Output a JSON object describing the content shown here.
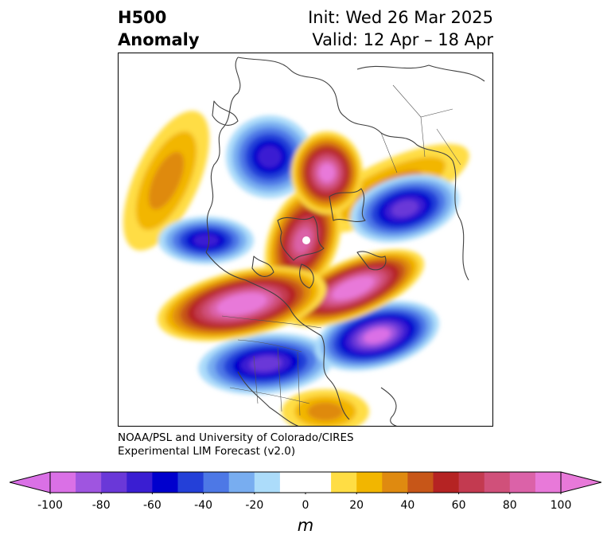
{
  "title": {
    "left_line1": "H500",
    "left_line2": "Anomaly",
    "right_line1": "Init: Wed 26 Mar 2025",
    "right_line2": "Valid: 12 Apr – 18 Apr"
  },
  "credit": {
    "line1": "NOAA/PSL and University of Colorado/CIRES",
    "line2": "Experimental LIM Forecast (v2.0)"
  },
  "colorbar": {
    "unit": "m",
    "ticks": [
      "-100",
      "-80",
      "-60",
      "-40",
      "-20",
      "0",
      "20",
      "40",
      "60",
      "80",
      "100"
    ],
    "low_extend_color": "#da70e6",
    "high_extend_color": "#e879d9",
    "colors": [
      "#da70e6",
      "#9f55e0",
      "#6a38d8",
      "#3a1ed2",
      "#0000cd",
      "#2440d8",
      "#4d78e6",
      "#78adf0",
      "#acdcfa",
      "#ffffff",
      "#ffffff",
      "#ffdd44",
      "#f2b600",
      "#df8a10",
      "#c75618",
      "#b52323",
      "#c33a50",
      "#d0507a",
      "#db62a8",
      "#e879d9"
    ]
  },
  "chart_data": {
    "type": "heatmap",
    "variable": "H500 Anomaly",
    "unit": "m",
    "color_range": [
      -100,
      100
    ],
    "contour_interval": 10,
    "anomaly_centers": [
      {
        "sign": "positive",
        "value": 100
      },
      {
        "sign": "positive",
        "value": 95
      },
      {
        "sign": "positive",
        "value": 90
      },
      {
        "sign": "positive",
        "value": 80
      },
      {
        "sign": "positive",
        "value": 30
      },
      {
        "sign": "positive",
        "value": 25
      },
      {
        "sign": "positive",
        "value": 30
      },
      {
        "sign": "negative",
        "value": -60
      },
      {
        "sign": "negative",
        "value": -70
      },
      {
        "sign": "negative",
        "value": -60
      },
      {
        "sign": "negative",
        "value": -70
      },
      {
        "sign": "negative",
        "value": -90
      }
    ]
  }
}
